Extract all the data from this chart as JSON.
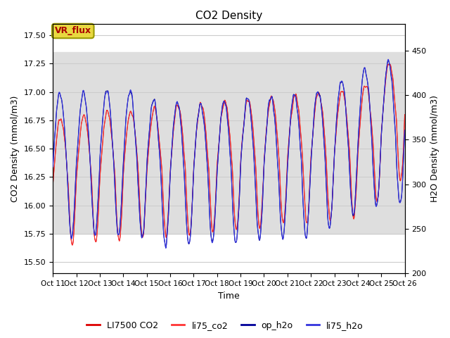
{
  "title": "CO2 Density",
  "xlabel": "Time",
  "ylabel_left": "CO2 Density (mmol/m3)",
  "ylabel_right": "H2O Density (mmol/m3)",
  "ylim_left": [
    15.4,
    17.6
  ],
  "ylim_right": [
    200,
    480
  ],
  "xlim": [
    0,
    15
  ],
  "xtick_labels": [
    "Oct 11",
    "Oct 12",
    "Oct 13",
    "Oct 14",
    "Oct 15",
    "Oct 16",
    "Oct 17",
    "Oct 18",
    "Oct 19",
    "Oct 20",
    "Oct 21",
    "Oct 22",
    "Oct 23",
    "Oct 24",
    "Oct 25",
    "Oct 26"
  ],
  "annotation_text": "VR_flux",
  "annotation_facecolor": "#e8d840",
  "annotation_edgecolor": "#999900",
  "legend_labels": [
    "LI7500 CO2",
    "li75_co2",
    "op_h2o",
    "li75_h2o"
  ],
  "color_li7500_co2": "#dd0000",
  "color_li75_co2": "#ff3333",
  "color_op_h2o": "#000099",
  "color_li75_h2o": "#3333dd",
  "band_color": "#dedede",
  "band_ymin": 15.75,
  "band_ymax": 17.35,
  "background_color": "#ffffff",
  "grid_color": "#cccccc"
}
